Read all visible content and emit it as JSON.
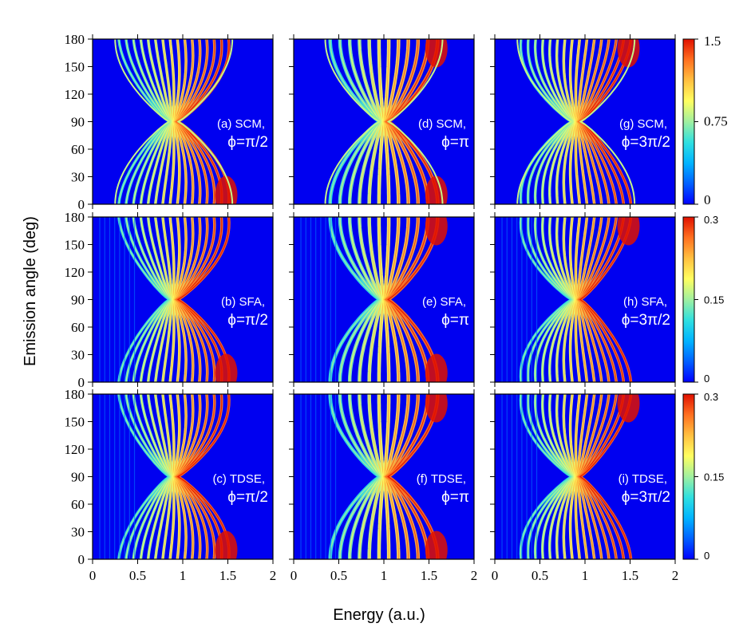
{
  "figure": {
    "ylabel": "Emission angle (deg)",
    "xlabel": "Energy (a.u.)",
    "xticks": [
      "0",
      "0.5",
      "1",
      "1.5",
      "2"
    ],
    "yticks": [
      "0",
      "30",
      "60",
      "90",
      "120",
      "150",
      "180"
    ]
  },
  "colormap": [
    "#0000ff",
    "#0060ff",
    "#00b4ff",
    "#30e0e0",
    "#a0f0a0",
    "#ffff60",
    "#ffc040",
    "#ff7020",
    "#e01000"
  ],
  "rows": [
    {
      "method": "SCM",
      "colorbar": {
        "ticks": [
          "0",
          "0.75",
          "1.5"
        ],
        "max": 1.5
      }
    },
    {
      "method": "SFA",
      "colorbar": {
        "ticks": [
          "0",
          "0.15",
          "0.3"
        ],
        "max": 0.3
      }
    },
    {
      "method": "TDSE",
      "colorbar": {
        "ticks": [
          "0",
          "0.15",
          "0.3"
        ],
        "max": 0.3
      }
    }
  ],
  "panels": [
    {
      "id": "a",
      "label_line1": "(a) SCM,",
      "label_line2": "ϕ=π/2",
      "method": "SCM",
      "phi": "π/2"
    },
    {
      "id": "d",
      "label_line1": "(d) SCM,",
      "label_line2": "ϕ=π",
      "method": "SCM",
      "phi": "π"
    },
    {
      "id": "g",
      "label_line1": "(g) SCM,",
      "label_line2": "ϕ=3π/2",
      "method": "SCM",
      "phi": "3π/2"
    },
    {
      "id": "b",
      "label_line1": "(b) SFA,",
      "label_line2": "ϕ=π/2",
      "method": "SFA",
      "phi": "π/2"
    },
    {
      "id": "e",
      "label_line1": "(e) SFA,",
      "label_line2": "ϕ=π",
      "method": "SFA",
      "phi": "π"
    },
    {
      "id": "h",
      "label_line1": "(h) SFA,",
      "label_line2": "ϕ=3π/2",
      "method": "SFA",
      "phi": "3π/2"
    },
    {
      "id": "c",
      "label_line1": "(c) TDSE,",
      "label_line2": "ϕ=π/2",
      "method": "TDSE",
      "phi": "π/2"
    },
    {
      "id": "f",
      "label_line1": "(f) TDSE,",
      "label_line2": "ϕ=π",
      "method": "TDSE",
      "phi": "π"
    },
    {
      "id": "i",
      "label_line1": "(i) TDSE,",
      "label_line2": "ϕ=3π/2",
      "method": "TDSE",
      "phi": "3π/2"
    }
  ],
  "chart_data": {
    "type": "heatmap",
    "xlabel": "Energy (a.u.)",
    "ylabel": "Emission angle (deg)",
    "xlim": [
      0,
      2
    ],
    "ylim": [
      0,
      180
    ],
    "grid": false,
    "panels": [
      {
        "id": "a",
        "method": "SCM",
        "phi": "π/2",
        "zlim": [
          0,
          1.5
        ],
        "center_energy": 0.9,
        "center_angle": 90,
        "energy_range_at_0deg": [
          0.5,
          1.65
        ],
        "energy_range_at_180deg": [
          0.5,
          1.65
        ],
        "peak_region": "E≈1.5, angle≈0"
      },
      {
        "id": "d",
        "method": "SCM",
        "phi": "π",
        "zlim": [
          0,
          1.5
        ],
        "center_energy": 1.0,
        "center_angle": 90,
        "energy_range_at_0deg": [
          0.5,
          1.6
        ],
        "energy_range_at_180deg": [
          0.5,
          1.6
        ],
        "peak_region": "E≈1.55, angle≈0 and 180"
      },
      {
        "id": "g",
        "method": "SCM",
        "phi": "3π/2",
        "zlim": [
          0,
          1.5
        ],
        "center_energy": 0.9,
        "center_angle": 90,
        "energy_range_at_0deg": [
          0.5,
          1.65
        ],
        "energy_range_at_180deg": [
          0.5,
          1.65
        ],
        "peak_region": "E≈1.5, angle≈180"
      },
      {
        "id": "b",
        "method": "SFA",
        "phi": "π/2",
        "zlim": [
          0,
          0.3
        ],
        "center_energy": 0.9,
        "center_angle": 90,
        "peak_region": "E≈1.5, angle≈0"
      },
      {
        "id": "e",
        "method": "SFA",
        "phi": "π",
        "zlim": [
          0,
          0.3
        ],
        "center_energy": 1.0,
        "center_angle": 90,
        "peak_region": "E≈1.55, angle≈0 and 180"
      },
      {
        "id": "h",
        "method": "SFA",
        "phi": "3π/2",
        "zlim": [
          0,
          0.3
        ],
        "center_energy": 0.9,
        "center_angle": 90,
        "peak_region": "E≈1.55, angle≈180"
      },
      {
        "id": "c",
        "method": "TDSE",
        "phi": "π/2",
        "zlim": [
          0,
          0.3
        ],
        "center_energy": 0.9,
        "center_angle": 90,
        "peak_region": "E≈1.5, angle≈0"
      },
      {
        "id": "f",
        "method": "TDSE",
        "phi": "π",
        "zlim": [
          0,
          0.3
        ],
        "center_energy": 1.0,
        "center_angle": 90,
        "peak_region": "E≈1.55, angle≈0 and 180"
      },
      {
        "id": "i",
        "method": "TDSE",
        "phi": "3π/2",
        "zlim": [
          0,
          0.3
        ],
        "center_energy": 0.9,
        "center_angle": 90,
        "peak_region": "E≈1.5, angle≈180"
      }
    ]
  }
}
